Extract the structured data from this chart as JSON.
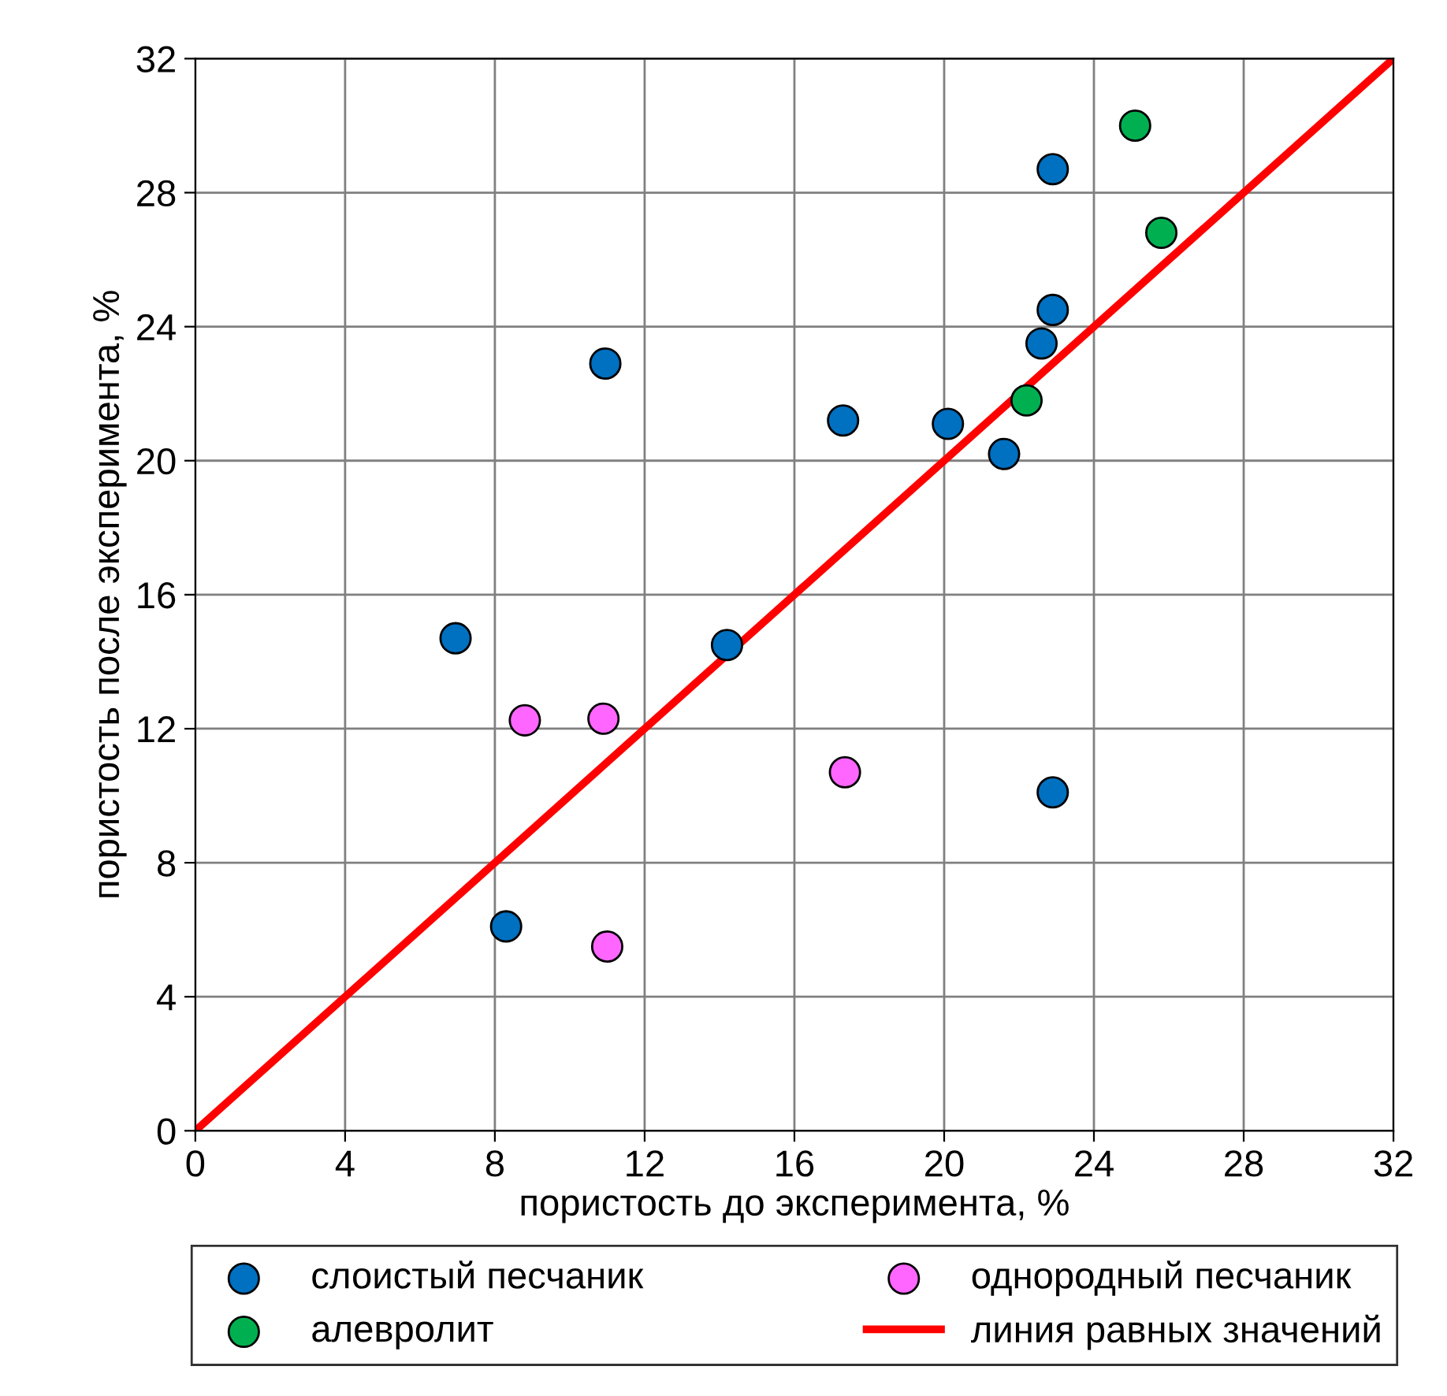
{
  "chart_data": {
    "type": "scatter",
    "xlabel": "пористость до эксперимента, %",
    "ylabel": "пористость после эксперимента, %",
    "xlim": [
      0,
      32
    ],
    "ylim": [
      0,
      32
    ],
    "xticks": [
      0,
      4,
      8,
      12,
      16,
      20,
      24,
      28,
      32
    ],
    "yticks": [
      0,
      4,
      8,
      12,
      16,
      20,
      24,
      28,
      32
    ],
    "grid": true,
    "legend": "bottom",
    "series": [
      {
        "name": "слоистый песчаник",
        "color": "#0070c0",
        "marker": "circle",
        "x": [
          6.95,
          10.95,
          8.3,
          14.2,
          17.3,
          20.1,
          21.6,
          22.9,
          22.6,
          22.9,
          22.9
        ],
        "values": [
          14.7,
          22.9,
          6.1,
          14.5,
          21.2,
          21.1,
          20.2,
          28.7,
          23.5,
          24.5,
          10.1
        ]
      },
      {
        "name": "однородный песчаник",
        "color": "#ff66ff",
        "marker": "circle",
        "x": [
          8.8,
          10.9,
          11.0,
          17.35
        ],
        "values": [
          12.25,
          12.3,
          5.5,
          10.7
        ]
      },
      {
        "name": "алевролит",
        "color": "#00b050",
        "marker": "circle",
        "x": [
          25.1,
          25.8,
          22.2
        ],
        "values": [
          30.0,
          26.8,
          21.8
        ]
      },
      {
        "name": "линия равных значений",
        "type": "line",
        "color": "#ff0000",
        "x": [
          0,
          32
        ],
        "values": [
          0,
          32
        ]
      }
    ]
  }
}
